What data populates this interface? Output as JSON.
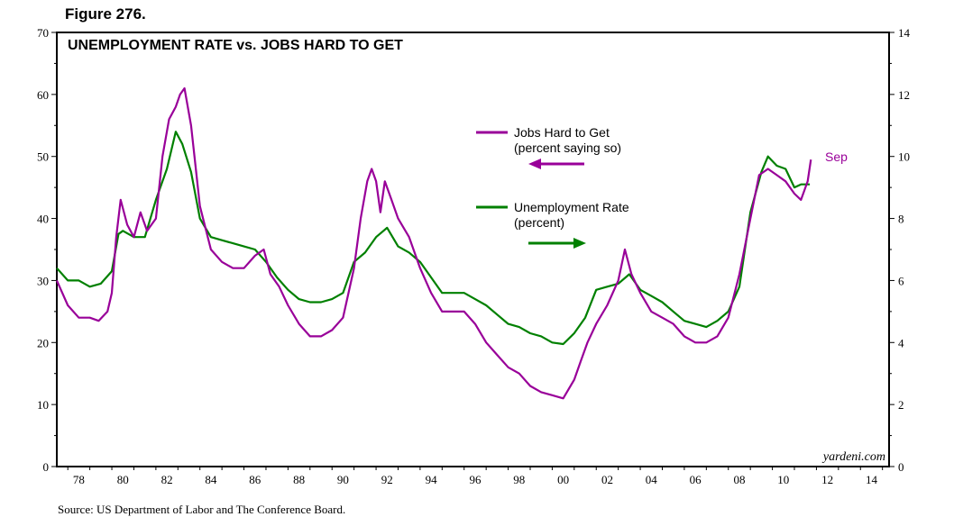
{
  "figure_label": "Figure 276.",
  "source": "Source: US Department of Labor and The Conference Board.",
  "chart_data": {
    "type": "line",
    "title": "UNEMPLOYMENT RATE vs. JOBS HARD TO GET",
    "watermark": "yardeni.com",
    "end_annotation": "Sep",
    "x_tick_labels": [
      "78",
      "80",
      "82",
      "84",
      "86",
      "88",
      "90",
      "92",
      "94",
      "96",
      "98",
      "00",
      "02",
      "04",
      "06",
      "08",
      "10",
      "12",
      "14"
    ],
    "x_range": [
      1977.5,
      2015.3
    ],
    "left_axis": {
      "range": [
        0,
        70
      ],
      "ticks": [
        0,
        10,
        20,
        30,
        40,
        50,
        60,
        70
      ]
    },
    "right_axis": {
      "range": [
        0,
        14
      ],
      "ticks": [
        0,
        2,
        4,
        6,
        8,
        10,
        12,
        14
      ]
    },
    "grid": false,
    "series": [
      {
        "name": "Jobs Hard to Get",
        "sublabel": "(percent saying so)",
        "axis": "left",
        "color": "#990099",
        "points": [
          [
            1977.5,
            30
          ],
          [
            1978.0,
            26
          ],
          [
            1978.5,
            24
          ],
          [
            1979.0,
            24
          ],
          [
            1979.4,
            23.5
          ],
          [
            1979.8,
            25
          ],
          [
            1980.0,
            28
          ],
          [
            1980.2,
            37
          ],
          [
            1980.4,
            43
          ],
          [
            1980.7,
            39
          ],
          [
            1981.0,
            37
          ],
          [
            1981.3,
            41
          ],
          [
            1981.6,
            38
          ],
          [
            1982.0,
            40
          ],
          [
            1982.3,
            50
          ],
          [
            1982.6,
            56
          ],
          [
            1982.9,
            58
          ],
          [
            1983.1,
            60
          ],
          [
            1983.3,
            61
          ],
          [
            1983.6,
            55
          ],
          [
            1984.0,
            42
          ],
          [
            1984.5,
            35
          ],
          [
            1985.0,
            33
          ],
          [
            1985.5,
            32
          ],
          [
            1986.0,
            32
          ],
          [
            1986.5,
            34
          ],
          [
            1986.9,
            35
          ],
          [
            1987.2,
            31
          ],
          [
            1987.6,
            29
          ],
          [
            1988.0,
            26
          ],
          [
            1988.5,
            23
          ],
          [
            1989.0,
            21
          ],
          [
            1989.5,
            21
          ],
          [
            1990.0,
            22
          ],
          [
            1990.5,
            24
          ],
          [
            1991.0,
            32
          ],
          [
            1991.3,
            40
          ],
          [
            1991.6,
            46
          ],
          [
            1991.8,
            48
          ],
          [
            1992.0,
            46
          ],
          [
            1992.2,
            41
          ],
          [
            1992.4,
            46
          ],
          [
            1992.7,
            43
          ],
          [
            1993.0,
            40
          ],
          [
            1993.5,
            37
          ],
          [
            1994.0,
            32
          ],
          [
            1994.5,
            28
          ],
          [
            1995.0,
            25
          ],
          [
            1995.5,
            25
          ],
          [
            1996.0,
            25
          ],
          [
            1996.5,
            23
          ],
          [
            1997.0,
            20
          ],
          [
            1997.5,
            18
          ],
          [
            1998.0,
            16
          ],
          [
            1998.5,
            15
          ],
          [
            1999.0,
            13
          ],
          [
            1999.5,
            12
          ],
          [
            2000.0,
            11.5
          ],
          [
            2000.5,
            11
          ],
          [
            2001.0,
            14
          ],
          [
            2001.3,
            17
          ],
          [
            2001.6,
            20
          ],
          [
            2002.0,
            23
          ],
          [
            2002.5,
            26
          ],
          [
            2003.0,
            30
          ],
          [
            2003.3,
            35
          ],
          [
            2003.6,
            31
          ],
          [
            2004.0,
            28
          ],
          [
            2004.5,
            25
          ],
          [
            2005.0,
            24
          ],
          [
            2005.5,
            23
          ],
          [
            2006.0,
            21
          ],
          [
            2006.5,
            20
          ],
          [
            2007.0,
            20
          ],
          [
            2007.5,
            21
          ],
          [
            2008.0,
            24
          ],
          [
            2008.5,
            31
          ],
          [
            2009.0,
            40
          ],
          [
            2009.4,
            47
          ],
          [
            2009.8,
            48
          ],
          [
            2010.2,
            47
          ],
          [
            2010.6,
            46
          ],
          [
            2011.0,
            44
          ],
          [
            2011.3,
            43
          ],
          [
            2011.6,
            46
          ],
          [
            2011.75,
            49.5
          ]
        ]
      },
      {
        "name": "Unemployment Rate",
        "sublabel": "(percent)",
        "axis": "right",
        "color": "#008000",
        "points": [
          [
            1977.5,
            6.4
          ],
          [
            1978.0,
            6.0
          ],
          [
            1978.5,
            6.0
          ],
          [
            1979.0,
            5.8
          ],
          [
            1979.5,
            5.9
          ],
          [
            1980.0,
            6.3
          ],
          [
            1980.3,
            7.5
          ],
          [
            1980.5,
            7.6
          ],
          [
            1981.0,
            7.4
          ],
          [
            1981.5,
            7.4
          ],
          [
            1982.0,
            8.6
          ],
          [
            1982.5,
            9.6
          ],
          [
            1982.9,
            10.8
          ],
          [
            1983.2,
            10.4
          ],
          [
            1983.6,
            9.5
          ],
          [
            1984.0,
            8.0
          ],
          [
            1984.5,
            7.4
          ],
          [
            1985.0,
            7.3
          ],
          [
            1985.5,
            7.2
          ],
          [
            1986.0,
            7.1
          ],
          [
            1986.5,
            7.0
          ],
          [
            1987.0,
            6.6
          ],
          [
            1987.5,
            6.1
          ],
          [
            1988.0,
            5.7
          ],
          [
            1988.5,
            5.4
          ],
          [
            1989.0,
            5.3
          ],
          [
            1989.5,
            5.3
          ],
          [
            1990.0,
            5.4
          ],
          [
            1990.5,
            5.6
          ],
          [
            1991.0,
            6.6
          ],
          [
            1991.5,
            6.9
          ],
          [
            1992.0,
            7.4
          ],
          [
            1992.5,
            7.7
          ],
          [
            1993.0,
            7.1
          ],
          [
            1993.5,
            6.9
          ],
          [
            1994.0,
            6.6
          ],
          [
            1994.5,
            6.1
          ],
          [
            1995.0,
            5.6
          ],
          [
            1995.5,
            5.6
          ],
          [
            1996.0,
            5.6
          ],
          [
            1996.5,
            5.4
          ],
          [
            1997.0,
            5.2
          ],
          [
            1997.5,
            4.9
          ],
          [
            1998.0,
            4.6
          ],
          [
            1998.5,
            4.5
          ],
          [
            1999.0,
            4.3
          ],
          [
            1999.5,
            4.2
          ],
          [
            2000.0,
            4.0
          ],
          [
            2000.5,
            3.95
          ],
          [
            2001.0,
            4.3
          ],
          [
            2001.5,
            4.8
          ],
          [
            2002.0,
            5.7
          ],
          [
            2002.5,
            5.8
          ],
          [
            2003.0,
            5.9
          ],
          [
            2003.5,
            6.2
          ],
          [
            2004.0,
            5.7
          ],
          [
            2004.5,
            5.5
          ],
          [
            2005.0,
            5.3
          ],
          [
            2005.5,
            5.0
          ],
          [
            2006.0,
            4.7
          ],
          [
            2006.5,
            4.6
          ],
          [
            2007.0,
            4.5
          ],
          [
            2007.5,
            4.7
          ],
          [
            2008.0,
            5.0
          ],
          [
            2008.5,
            5.8
          ],
          [
            2009.0,
            8.2
          ],
          [
            2009.5,
            9.5
          ],
          [
            2009.8,
            10.0
          ],
          [
            2010.2,
            9.7
          ],
          [
            2010.6,
            9.6
          ],
          [
            2011.0,
            9.0
          ],
          [
            2011.3,
            9.1
          ],
          [
            2011.7,
            9.1
          ]
        ]
      }
    ]
  }
}
